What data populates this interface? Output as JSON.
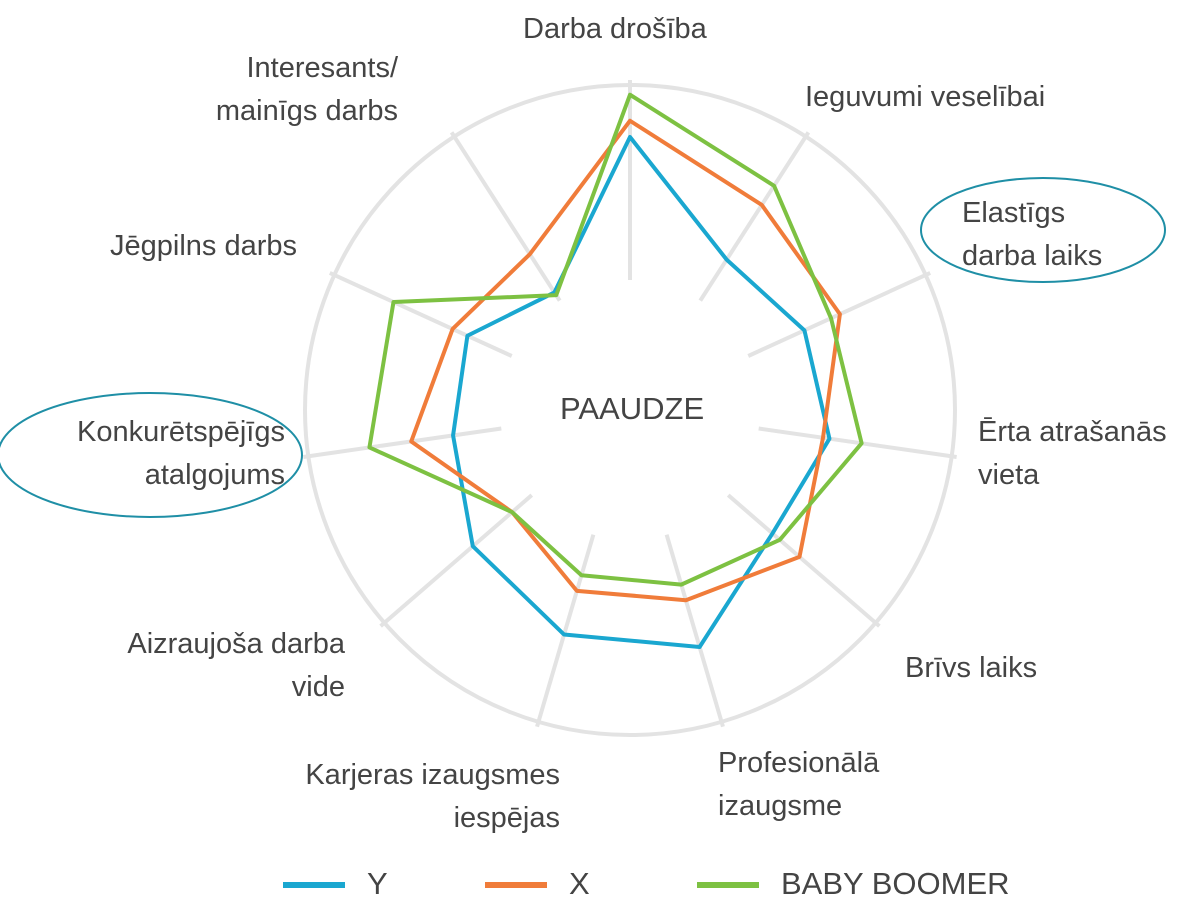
{
  "chart_data": {
    "type": "radar",
    "center_label": "PAAUDZE",
    "categories": [
      "Darba drošība",
      "Ieguvumi veselībai",
      "Elastīgs\ndarba laiks",
      "Ērta atrašanās\nvieta",
      "Brīvs laiks",
      "Profesionālā\nizaugsme",
      "Karjeras izaugsmes\niespējas",
      "Aizraujoša darba\nvide",
      "Konkurētspējīgs\natalgojums",
      "Jēgpilns darbs",
      "Interesants/\nmainīgs darbs"
    ],
    "rlim": [
      0,
      100
    ],
    "series": [
      {
        "name": "Y",
        "color": "#1aa7d0",
        "values": [
          84,
          55,
          59,
          62,
          58,
          76,
          72,
          64,
          55,
          55,
          43
        ]
      },
      {
        "name": "X",
        "color": "#f07c3a",
        "values": [
          89,
          75,
          71,
          60,
          69,
          61,
          58,
          48,
          68,
          60,
          57
        ]
      },
      {
        "name": "BABY BOOMER",
        "color": "#7dc142",
        "values": [
          97,
          82,
          68,
          72,
          61,
          56,
          53,
          48,
          81,
          80,
          42
        ]
      }
    ]
  }
}
